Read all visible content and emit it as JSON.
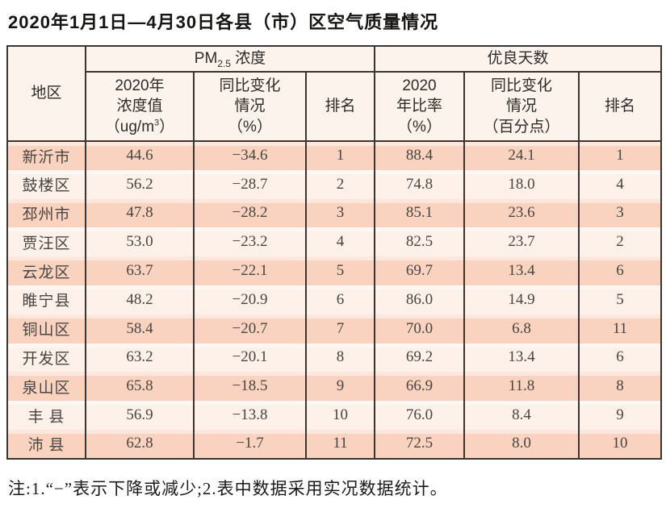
{
  "page": {
    "title": "2020年1月1日—4月30日各县（市）区空气质量情况",
    "footnote": "注:1.“−”表示下降或减少;2.表中数据采用实况数据统计。"
  },
  "colors": {
    "border": "#3b3531",
    "row_odd": "#f9d3bf",
    "row_even": "#fdf1e9",
    "header_bg": "#fbf3ec"
  },
  "table": {
    "region_col": "地区",
    "pm_group": {
      "pre": "PM",
      "sub": "2.5",
      "post": " 浓度"
    },
    "good_group": "优良天数",
    "pm_value_col": {
      "lines": "2020年\n浓度值",
      "unit_pre": "（ug/m",
      "unit_sup": "3",
      "unit_post": "）"
    },
    "pm_change_col": "同比变化\n情况\n（%）",
    "pm_rank_col": "排名",
    "good_ratio_col": "2020\n年比率\n（%）",
    "good_change_col": "同比变化\n情况\n（百分点）",
    "good_rank_col": "排名",
    "rows": [
      {
        "region": "新沂市",
        "pm_value": "44.6",
        "pm_change": "−34.6",
        "pm_rank": "1",
        "good_ratio": "88.4",
        "good_change": "24.1",
        "good_rank": "1"
      },
      {
        "region": "鼓楼区",
        "pm_value": "56.2",
        "pm_change": "−28.7",
        "pm_rank": "2",
        "good_ratio": "74.8",
        "good_change": "18.0",
        "good_rank": "4"
      },
      {
        "region": "邳州市",
        "pm_value": "47.8",
        "pm_change": "−28.2",
        "pm_rank": "3",
        "good_ratio": "85.1",
        "good_change": "23.6",
        "good_rank": "3"
      },
      {
        "region": "贾汪区",
        "pm_value": "53.0",
        "pm_change": "−23.2",
        "pm_rank": "4",
        "good_ratio": "82.5",
        "good_change": "23.7",
        "good_rank": "2"
      },
      {
        "region": "云龙区",
        "pm_value": "63.7",
        "pm_change": "−22.1",
        "pm_rank": "5",
        "good_ratio": "69.7",
        "good_change": "13.4",
        "good_rank": "6"
      },
      {
        "region": "睢宁县",
        "pm_value": "48.2",
        "pm_change": "−20.9",
        "pm_rank": "6",
        "good_ratio": "86.0",
        "good_change": "14.9",
        "good_rank": "5"
      },
      {
        "region": "铜山区",
        "pm_value": "58.4",
        "pm_change": "−20.7",
        "pm_rank": "7",
        "good_ratio": "70.0",
        "good_change": "6.8",
        "good_rank": "11"
      },
      {
        "region": "开发区",
        "pm_value": "63.2",
        "pm_change": "−20.1",
        "pm_rank": "8",
        "good_ratio": "69.2",
        "good_change": "13.4",
        "good_rank": "6"
      },
      {
        "region": "泉山区",
        "pm_value": "65.8",
        "pm_change": "−18.5",
        "pm_rank": "9",
        "good_ratio": "66.9",
        "good_change": "11.8",
        "good_rank": "8"
      },
      {
        "region": "丰 县",
        "pm_value": "56.9",
        "pm_change": "−13.8",
        "pm_rank": "10",
        "good_ratio": "76.0",
        "good_change": "8.4",
        "good_rank": "9"
      },
      {
        "region": "沛 县",
        "pm_value": "62.8",
        "pm_change": "−1.7",
        "pm_rank": "11",
        "good_ratio": "72.5",
        "good_change": "8.0",
        "good_rank": "10"
      }
    ]
  }
}
